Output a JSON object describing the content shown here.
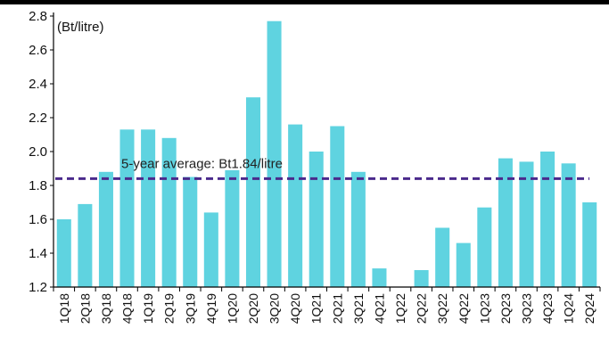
{
  "chart_data": {
    "type": "bar",
    "unit_label": "(Bt/litre)",
    "categories": [
      "1Q18",
      "2Q18",
      "3Q18",
      "4Q18",
      "1Q19",
      "2Q19",
      "3Q19",
      "4Q19",
      "1Q20",
      "2Q20",
      "3Q20",
      "4Q20",
      "1Q21",
      "2Q21",
      "3Q21",
      "4Q21",
      "1Q22",
      "2Q22",
      "3Q22",
      "4Q22",
      "1Q23",
      "2Q23",
      "3Q23",
      "4Q23",
      "1Q24",
      "2Q24"
    ],
    "values": [
      1.6,
      1.69,
      1.88,
      2.13,
      2.13,
      2.08,
      1.85,
      1.64,
      1.89,
      2.32,
      2.77,
      2.16,
      2.0,
      2.15,
      1.88,
      1.31,
      1.2,
      1.3,
      1.55,
      1.46,
      1.67,
      1.96,
      1.94,
      2.0,
      1.93,
      1.7
    ],
    "ylim": [
      1.2,
      2.8
    ],
    "yticks": [
      1.2,
      1.4,
      1.6,
      1.8,
      2.0,
      2.2,
      2.4,
      2.6,
      2.8
    ],
    "ytick_labels": [
      "1.2",
      "1.4",
      "1.6",
      "1.8",
      "2.0",
      "2.2",
      "2.4",
      "2.6",
      "2.8"
    ],
    "average": {
      "value": 1.84,
      "label": "5-year average: Bt1.84/litre"
    },
    "grid": false,
    "colors": {
      "bar": "#5fd3e0",
      "average_line": "#4b2a8c",
      "axis": "#000000",
      "top_rule": "#000000"
    }
  }
}
